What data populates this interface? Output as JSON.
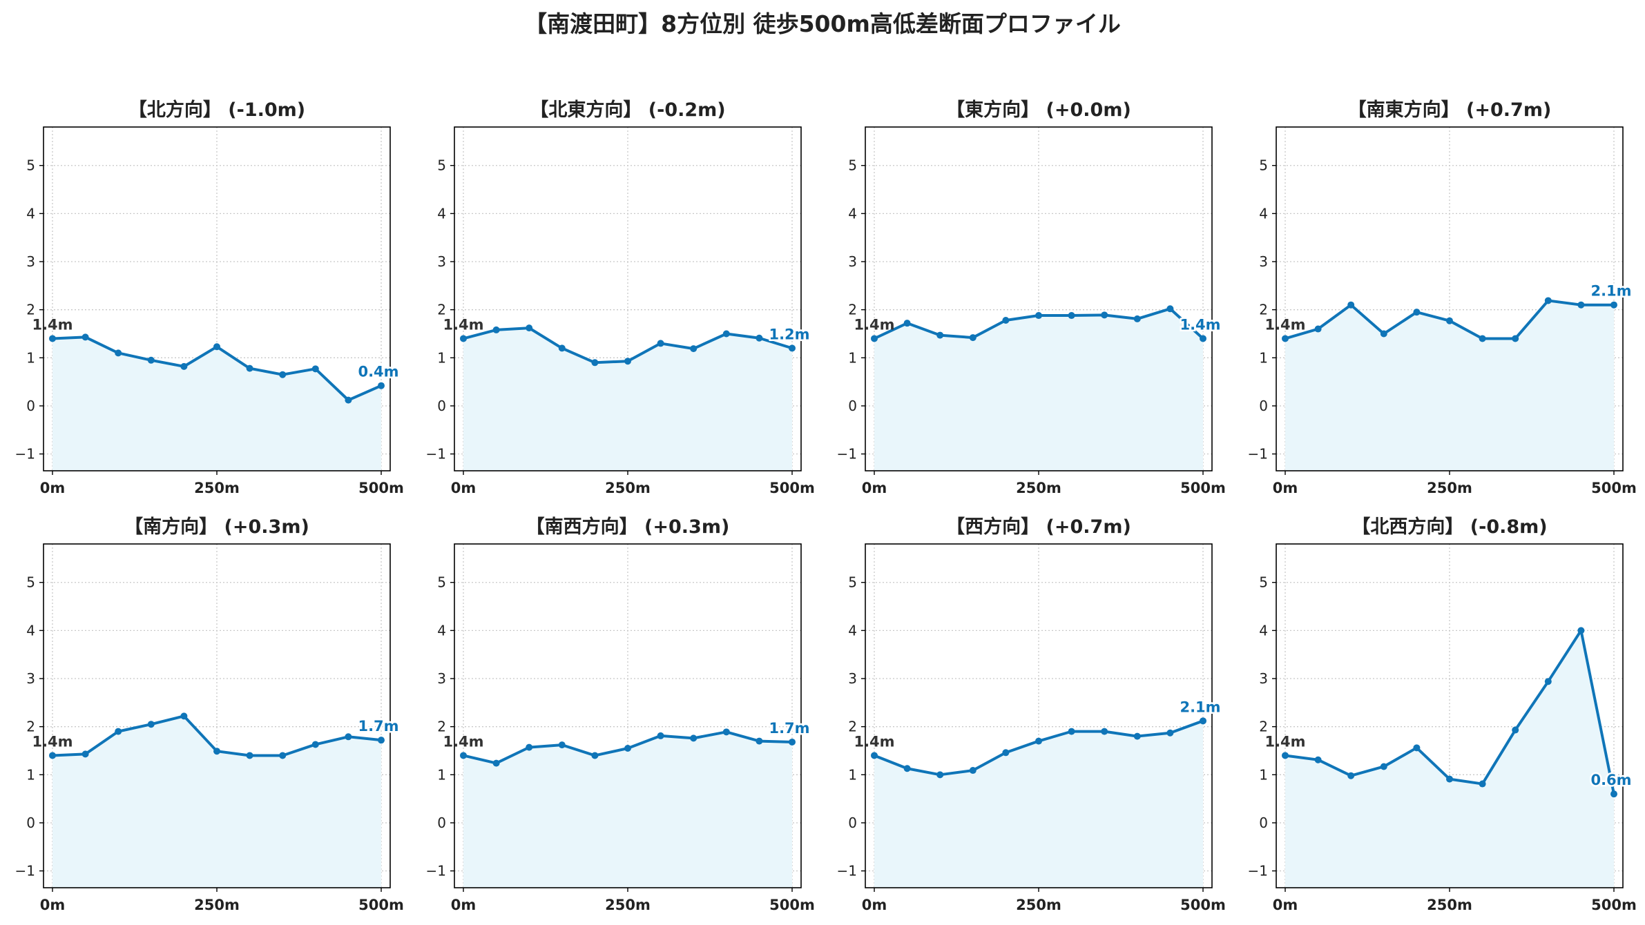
{
  "title": "【南渡田町】8方位別 徒歩500m高低差断面プロファイル",
  "colors": {
    "line": "#0f75b8",
    "fill": "#e9f6fb",
    "grid": "#c8c8c8",
    "start_label": "#333333",
    "end_label": "#0f75b8"
  },
  "chart_data": [
    {
      "type": "line",
      "title": "【北方向】 (-1.0m)",
      "x": [
        0,
        50,
        100,
        150,
        200,
        250,
        300,
        350,
        400,
        450,
        500
      ],
      "series": [
        {
          "values": [
            1.4,
            1.43,
            1.1,
            0.95,
            0.82,
            1.23,
            0.78,
            0.65,
            0.77,
            0.12,
            0.42
          ]
        }
      ],
      "start_label": "1.4m",
      "end_label": "0.4m",
      "ylim": [
        -1.35,
        5.8
      ],
      "yticks": [
        "−1",
        "0",
        "1",
        "2",
        "3",
        "4",
        "5"
      ],
      "xticks": [
        "0m",
        "250m",
        "500m"
      ],
      "grid": true,
      "fill": true
    },
    {
      "type": "line",
      "title": "【北東方向】 (-0.2m)",
      "x": [
        0,
        50,
        100,
        150,
        200,
        250,
        300,
        350,
        400,
        450,
        500
      ],
      "series": [
        {
          "values": [
            1.4,
            1.58,
            1.62,
            1.2,
            0.9,
            0.93,
            1.3,
            1.19,
            1.5,
            1.41,
            1.2
          ]
        }
      ],
      "start_label": "1.4m",
      "end_label": "1.2m",
      "ylim": [
        -1.35,
        5.8
      ],
      "yticks": [
        "−1",
        "0",
        "1",
        "2",
        "3",
        "4",
        "5"
      ],
      "xticks": [
        "0m",
        "250m",
        "500m"
      ],
      "grid": true,
      "fill": true
    },
    {
      "type": "line",
      "title": "【東方向】 (+0.0m)",
      "x": [
        0,
        50,
        100,
        150,
        200,
        250,
        300,
        350,
        400,
        450,
        500
      ],
      "series": [
        {
          "values": [
            1.4,
            1.72,
            1.47,
            1.42,
            1.78,
            1.88,
            1.88,
            1.89,
            1.81,
            2.02,
            1.4
          ]
        }
      ],
      "start_label": "1.4m",
      "end_label": "1.4m",
      "ylim": [
        -1.35,
        5.8
      ],
      "yticks": [
        "−1",
        "0",
        "1",
        "2",
        "3",
        "4",
        "5"
      ],
      "xticks": [
        "0m",
        "250m",
        "500m"
      ],
      "grid": true,
      "fill": true
    },
    {
      "type": "line",
      "title": "【南東方向】 (+0.7m)",
      "x": [
        0,
        50,
        100,
        150,
        200,
        250,
        300,
        350,
        400,
        450,
        500
      ],
      "series": [
        {
          "values": [
            1.4,
            1.6,
            2.1,
            1.5,
            1.95,
            1.77,
            1.4,
            1.4,
            2.19,
            2.1,
            2.1
          ]
        }
      ],
      "start_label": "1.4m",
      "end_label": "2.1m",
      "ylim": [
        -1.35,
        5.8
      ],
      "yticks": [
        "−1",
        "0",
        "1",
        "2",
        "3",
        "4",
        "5"
      ],
      "xticks": [
        "0m",
        "250m",
        "500m"
      ],
      "grid": true,
      "fill": true
    },
    {
      "type": "line",
      "title": "【南方向】 (+0.3m)",
      "x": [
        0,
        50,
        100,
        150,
        200,
        250,
        300,
        350,
        400,
        450,
        500
      ],
      "series": [
        {
          "values": [
            1.4,
            1.43,
            1.9,
            2.05,
            2.22,
            1.49,
            1.4,
            1.4,
            1.63,
            1.79,
            1.72
          ]
        }
      ],
      "start_label": "1.4m",
      "end_label": "1.7m",
      "ylim": [
        -1.35,
        5.8
      ],
      "yticks": [
        "−1",
        "0",
        "1",
        "2",
        "3",
        "4",
        "5"
      ],
      "xticks": [
        "0m",
        "250m",
        "500m"
      ],
      "grid": true,
      "fill": true
    },
    {
      "type": "line",
      "title": "【南西方向】 (+0.3m)",
      "x": [
        0,
        50,
        100,
        150,
        200,
        250,
        300,
        350,
        400,
        450,
        500
      ],
      "series": [
        {
          "values": [
            1.4,
            1.24,
            1.57,
            1.62,
            1.4,
            1.55,
            1.81,
            1.76,
            1.89,
            1.7,
            1.68
          ]
        }
      ],
      "start_label": "1.4m",
      "end_label": "1.7m",
      "ylim": [
        -1.35,
        5.8
      ],
      "yticks": [
        "−1",
        "0",
        "1",
        "2",
        "3",
        "4",
        "5"
      ],
      "xticks": [
        "0m",
        "250m",
        "500m"
      ],
      "grid": true,
      "fill": true
    },
    {
      "type": "line",
      "title": "【西方向】 (+0.7m)",
      "x": [
        0,
        50,
        100,
        150,
        200,
        250,
        300,
        350,
        400,
        450,
        500
      ],
      "series": [
        {
          "values": [
            1.4,
            1.13,
            1.0,
            1.09,
            1.46,
            1.7,
            1.9,
            1.9,
            1.8,
            1.87,
            2.12
          ]
        }
      ],
      "start_label": "1.4m",
      "end_label": "2.1m",
      "ylim": [
        -1.35,
        5.8
      ],
      "yticks": [
        "−1",
        "0",
        "1",
        "2",
        "3",
        "4",
        "5"
      ],
      "xticks": [
        "0m",
        "250m",
        "500m"
      ],
      "grid": true,
      "fill": true
    },
    {
      "type": "line",
      "title": "【北西方向】 (-0.8m)",
      "x": [
        0,
        50,
        100,
        150,
        200,
        250,
        300,
        350,
        400,
        450,
        500
      ],
      "series": [
        {
          "values": [
            1.4,
            1.31,
            0.98,
            1.17,
            1.56,
            0.91,
            0.81,
            1.93,
            2.94,
            4.0,
            0.6
          ]
        }
      ],
      "start_label": "1.4m",
      "end_label": "0.6m",
      "ylim": [
        -1.35,
        5.8
      ],
      "yticks": [
        "−1",
        "0",
        "1",
        "2",
        "3",
        "4",
        "5"
      ],
      "xticks": [
        "0m",
        "250m",
        "500m"
      ],
      "grid": true,
      "fill": true
    }
  ]
}
